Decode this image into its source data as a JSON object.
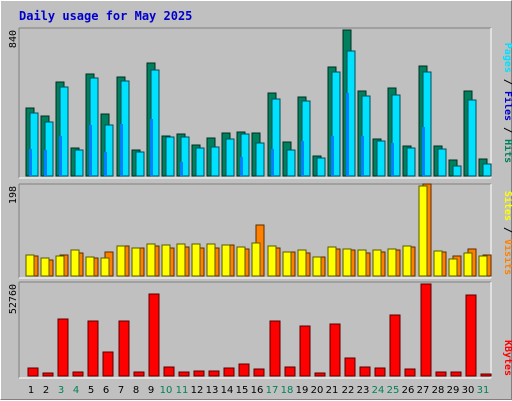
{
  "chart_data": {
    "type": "bar",
    "title": "Daily usage for May 2025",
    "x": [
      "1",
      "2",
      "3",
      "4",
      "5",
      "6",
      "7",
      "8",
      "9",
      "10",
      "11",
      "12",
      "13",
      "14",
      "15",
      "16",
      "17",
      "18",
      "19",
      "20",
      "21",
      "22",
      "23",
      "24",
      "25",
      "26",
      "27",
      "28",
      "29",
      "30",
      "31"
    ],
    "weekend_days": [
      "3",
      "4",
      "10",
      "11",
      "17",
      "18",
      "24",
      "25",
      "31"
    ],
    "colors": {
      "hits": "#00805c",
      "files": "#00e0ff",
      "pages": "#0080ff",
      "sites": "#ffff00",
      "visits": "#ff8000",
      "kbytes": "#ff0000",
      "weekday_label": "#000000",
      "weekend_label": "#00805c"
    },
    "panels": [
      {
        "name": "pages-files-hits",
        "ymax_label": "840",
        "ymax": 840,
        "legend": [
          {
            "text": "Pages",
            "color": "#00e0ff"
          },
          {
            "text": "Files",
            "color": "#0000cc"
          },
          {
            "text": "Hits",
            "color": "#00805c"
          }
        ],
        "series": [
          {
            "name": "Hits",
            "color": "#00805c",
            "values": [
              393,
              345,
              539,
              162,
              585,
              355,
              568,
              151,
              651,
              232,
              242,
              177,
              217,
              249,
              254,
              249,
              477,
              194,
              456,
              113,
              625,
              840,
              487,
              214,
              505,
              175,
              635,
              175,
              93,
              488,
              100
            ]
          },
          {
            "name": "Files",
            "color": "#00e0ff",
            "values": [
              360,
              312,
              512,
              150,
              562,
              295,
              545,
              138,
              610,
              226,
              226,
              161,
              168,
              213,
              244,
              188,
              445,
              150,
              434,
              103,
              598,
              720,
              460,
              203,
              465,
              161,
              599,
              158,
              60,
              440,
              70
            ]
          },
          {
            "name": "Pages",
            "color": "#0080ff",
            "values": [
              155,
              148,
              231,
              0,
              292,
              137,
              298,
              0,
              326,
              0,
              81,
              0,
              0,
              0,
              110,
              0,
              158,
              0,
              204,
              0,
              231,
              480,
              229,
              0,
              191,
              0,
              282,
              0,
              0,
              0,
              0
            ]
          }
        ]
      },
      {
        "name": "sites-visits",
        "ymax_label": "198",
        "ymax": 198,
        "legend": [
          {
            "text": "Sites",
            "color": "#ffff00"
          },
          {
            "text": "Visits",
            "color": "#ff8000"
          }
        ],
        "series": [
          {
            "name": "Visits",
            "color": "#ff8000",
            "values": [
              42,
              35,
              45,
              50,
              38,
              52,
              64,
              60,
              64,
              60,
              62,
              60,
              60,
              67,
              58,
              110,
              60,
              52,
              50,
              40,
              58,
              55,
              50,
              52,
              56,
              62,
              198,
              52,
              44,
              58,
              46
            ]
          },
          {
            "name": "Sites",
            "color": "#ffff00",
            "values": [
              45,
              38,
              44,
              55,
              40,
              38,
              64,
              60,
              68,
              67,
              69,
              68,
              68,
              66,
              62,
              72,
              64,
              52,
              56,
              40,
              63,
              58,
              57,
              55,
              58,
              65,
              193,
              54,
              37,
              50,
              42
            ]
          }
        ]
      },
      {
        "name": "kbytes",
        "ymax_label": "52760",
        "ymax": 52760,
        "legend": [
          {
            "text": "KBytes",
            "color": "#ff0000"
          }
        ],
        "series": [
          {
            "name": "KBytes",
            "color": "#ff0000",
            "values": [
              4700,
              1600,
              32800,
              2100,
              31800,
              13500,
              31800,
              2500,
              46800,
              5000,
              2100,
              2800,
              2800,
              4800,
              7000,
              4000,
              31400,
              5000,
              28900,
              1500,
              29800,
              10400,
              5000,
              4500,
              35200,
              4000,
              52760,
              2500,
              2500,
              46200,
              1000
            ]
          }
        ]
      }
    ]
  }
}
